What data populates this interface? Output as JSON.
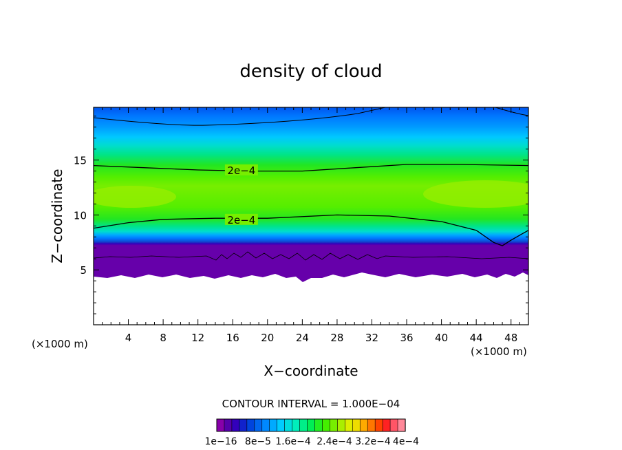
{
  "chart_data": {
    "type": "heatmap",
    "title": "density of cloud",
    "xlabel": "X−coordinate",
    "ylabel": "Z−coordinate",
    "x_unit_left": "(×1000 m)",
    "x_unit_right": "(×1000 m)",
    "xlim": [
      0,
      50
    ],
    "ylim": [
      0,
      19.8
    ],
    "x_ticks": [
      4,
      8,
      12,
      16,
      20,
      24,
      28,
      32,
      36,
      40,
      44,
      48
    ],
    "y_ticks": [
      5,
      10,
      15
    ],
    "contour_interval_label": "CONTOUR INTERVAL = 1.000E−04",
    "contour_labels": [
      {
        "text": "2e−4",
        "x": 17.0,
        "z": 14.1
      },
      {
        "text": "2e−4",
        "x": 17.0,
        "z": 9.6
      }
    ],
    "contour_lines_2e-4": {
      "upper": [
        [
          0,
          14.5
        ],
        [
          6,
          14.3
        ],
        [
          12,
          14.1
        ],
        [
          18,
          14.0
        ],
        [
          24,
          14.0
        ],
        [
          30,
          14.3
        ],
        [
          36,
          14.6
        ],
        [
          42,
          14.6
        ],
        [
          50,
          14.5
        ]
      ],
      "lower": [
        [
          0,
          8.8
        ],
        [
          4,
          9.3
        ],
        [
          8,
          9.6
        ],
        [
          14,
          9.7
        ],
        [
          20,
          9.7
        ],
        [
          28,
          10.0
        ],
        [
          34,
          9.9
        ],
        [
          40,
          9.4
        ],
        [
          44,
          8.6
        ],
        [
          46,
          7.5
        ],
        [
          47,
          7.2
        ],
        [
          48,
          7.7
        ],
        [
          50,
          8.6
        ]
      ]
    },
    "colorbar": {
      "colors": [
        "#8800aa",
        "#5500aa",
        "#3300bb",
        "#1122cc",
        "#0044dd",
        "#0066ee",
        "#0088ff",
        "#00aaff",
        "#00ccff",
        "#00dddd",
        "#00eebb",
        "#00ee88",
        "#00ee55",
        "#22ee22",
        "#44ee00",
        "#77ee00",
        "#aaee00",
        "#ddee00",
        "#eedd00",
        "#ffaa00",
        "#ff7700",
        "#ff4400",
        "#ff2222",
        "#ff5566",
        "#ff8899"
      ],
      "tick_labels": [
        "1e−16",
        "8e−5",
        "1.6e−4",
        "2.4e−4",
        "3.2e−4",
        "4e−4"
      ]
    },
    "legend": "bottom-center",
    "grid": false
  }
}
